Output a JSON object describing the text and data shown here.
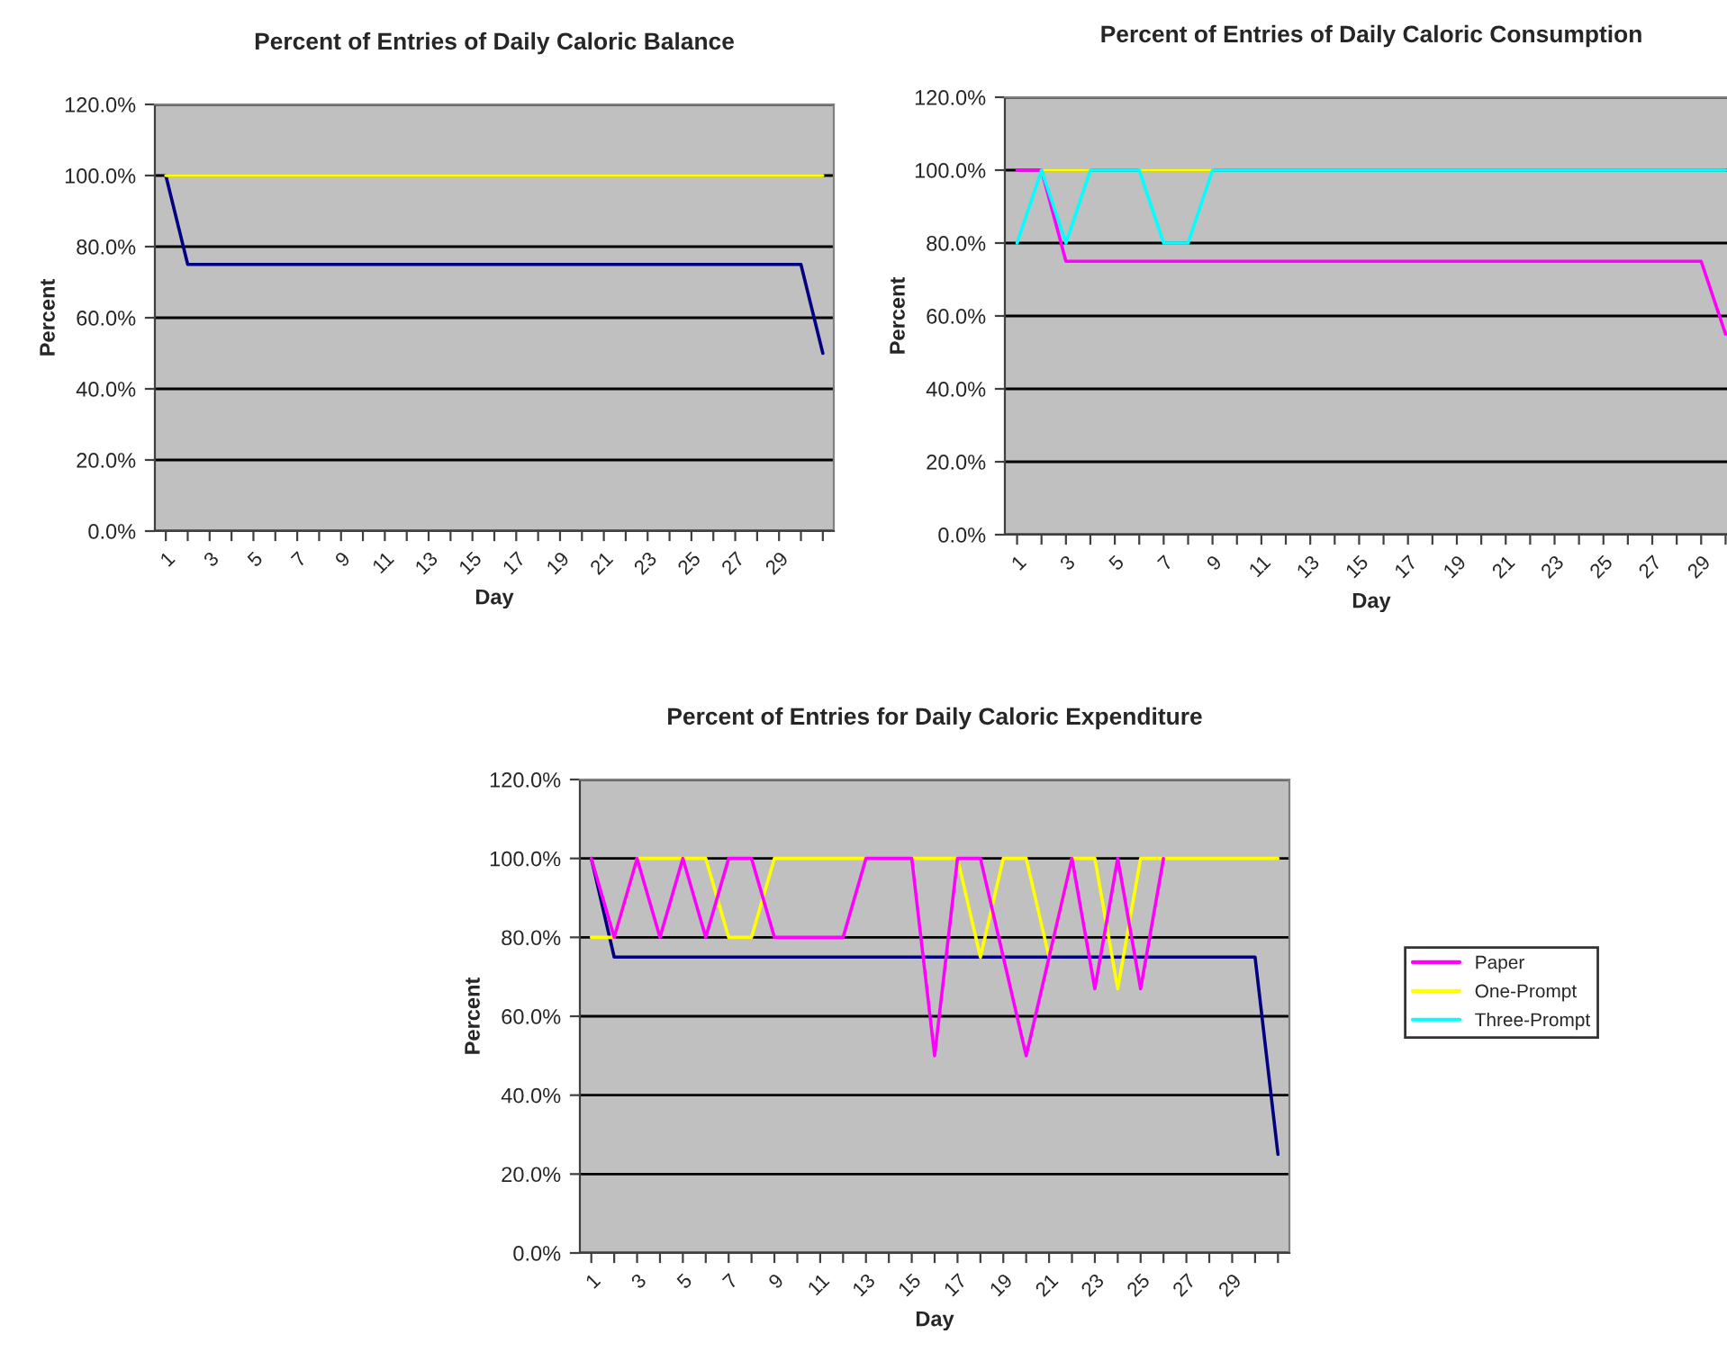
{
  "chart_data": [
    {
      "type": "line",
      "title": "Percent of Entries of Daily Caloric Balance",
      "xlabel": "Day",
      "ylabel": "Percent",
      "categories": [
        "1",
        null,
        "3",
        null,
        "5",
        null,
        "7",
        null,
        "9",
        null,
        "11",
        null,
        "13",
        null,
        "15",
        null,
        "17",
        null,
        "19",
        null,
        "21",
        null,
        "23",
        null,
        "25",
        null,
        "27",
        null,
        "29",
        null,
        null
      ],
      "series": [
        {
          "color": "#ffff00",
          "values": [
            100,
            100,
            100,
            100,
            100,
            100,
            100,
            100,
            100,
            100,
            100,
            100,
            100,
            100,
            100,
            100,
            100,
            100,
            100,
            100,
            100,
            100,
            100,
            100,
            100,
            100,
            100,
            100,
            100,
            100,
            100
          ]
        },
        {
          "color": "#000080",
          "values": [
            100,
            75,
            75,
            75,
            75,
            75,
            75,
            75,
            75,
            75,
            75,
            75,
            75,
            75,
            75,
            75,
            75,
            75,
            75,
            75,
            75,
            75,
            75,
            75,
            75,
            75,
            75,
            75,
            75,
            75,
            50
          ]
        }
      ],
      "ylim": [
        0,
        120
      ],
      "yticks": [
        {
          "value": 0,
          "label": "0.0%"
        },
        {
          "value": 20,
          "label": "20.0%"
        },
        {
          "value": 40,
          "label": "40.0%"
        },
        {
          "value": 60,
          "label": "60.0%"
        },
        {
          "value": 80,
          "label": "80.0%"
        },
        {
          "value": 100,
          "label": "100.0%"
        },
        {
          "value": 120,
          "label": "120.0%"
        }
      ],
      "grid": "y"
    },
    {
      "type": "line",
      "title": "Percent of Entries of Daily Caloric Consumption",
      "xlabel": "Day",
      "ylabel": "Percent",
      "categories": [
        "1",
        null,
        "3",
        null,
        "5",
        null,
        "7",
        null,
        "9",
        null,
        "11",
        null,
        "13",
        null,
        "15",
        null,
        "17",
        null,
        "19",
        null,
        "21",
        null,
        "23",
        null,
        "25",
        null,
        "27",
        null,
        "29",
        null
      ],
      "series": [
        {
          "color": "#00ffff",
          "values": [
            80,
            100,
            80,
            100,
            100,
            100,
            80,
            80,
            100,
            100,
            100,
            100,
            100,
            100,
            100,
            100,
            100,
            100,
            100,
            100,
            100,
            100,
            100,
            100,
            100,
            100,
            100,
            100,
            100,
            100
          ]
        },
        {
          "color": "#ff00ff",
          "values": [
            100,
            100,
            75,
            75,
            75,
            75,
            75,
            75,
            75,
            75,
            75,
            75,
            75,
            75,
            75,
            75,
            75,
            75,
            75,
            75,
            75,
            75,
            75,
            75,
            75,
            75,
            75,
            75,
            75,
            55
          ]
        },
        {
          "color": "#ffff00",
          "values": [
            null,
            100,
            100,
            100,
            null,
            100,
            100,
            100,
            100,
            null,
            null,
            null,
            null,
            null,
            null,
            null,
            null,
            null,
            null,
            null,
            null,
            null,
            null,
            null,
            null,
            null,
            null,
            null,
            null,
            null
          ]
        }
      ],
      "ylim": [
        0,
        120
      ],
      "yticks": [
        {
          "value": 0,
          "label": "0.0%"
        },
        {
          "value": 20,
          "label": "20.0%"
        },
        {
          "value": 40,
          "label": "40.0%"
        },
        {
          "value": 60,
          "label": "60.0%"
        },
        {
          "value": 80,
          "label": "80.0%"
        },
        {
          "value": 100,
          "label": "100.0%"
        },
        {
          "value": 120,
          "label": "120.0%"
        }
      ],
      "grid": "y"
    },
    {
      "type": "line",
      "title": "Percent of Entries for Daily Caloric Expenditure",
      "xlabel": "Day",
      "ylabel": "Percent",
      "legend": "right",
      "categories": [
        "1",
        null,
        "3",
        null,
        "5",
        null,
        "7",
        null,
        "9",
        null,
        "11",
        null,
        "13",
        null,
        "15",
        null,
        "17",
        null,
        "19",
        null,
        "21",
        null,
        "23",
        null,
        "25",
        null,
        "27",
        null,
        "29",
        null,
        null
      ],
      "series": [
        {
          "name": "Paper",
          "color": "#ff00ff",
          "values": [
            100,
            80,
            100,
            80,
            100,
            80,
            100,
            100,
            80,
            80,
            80,
            80,
            100,
            100,
            100,
            50,
            100,
            100,
            75,
            50,
            75,
            100,
            67,
            100,
            67,
            100,
            null,
            null,
            null,
            null,
            null
          ]
        },
        {
          "name": "One-Prompt",
          "color": "#ffff00",
          "values": [
            80,
            80,
            100,
            100,
            100,
            100,
            80,
            80,
            100,
            100,
            100,
            100,
            100,
            null,
            100,
            100,
            100,
            75,
            100,
            100,
            75,
            100,
            100,
            67,
            100,
            100,
            100,
            100,
            100,
            100,
            100
          ]
        },
        {
          "name": "Three-Prompt",
          "color": "#00ffff",
          "values": [
            null,
            null,
            null,
            null,
            null,
            null,
            null,
            null,
            null,
            null,
            null,
            null,
            null,
            null,
            null,
            null,
            null,
            null,
            null,
            null,
            null,
            null,
            null,
            null,
            null,
            null,
            null,
            null,
            null,
            null,
            null
          ]
        },
        {
          "color": "#000080",
          "values": [
            100,
            75,
            75,
            75,
            75,
            75,
            75,
            75,
            75,
            75,
            75,
            75,
            75,
            75,
            75,
            75,
            75,
            75,
            75,
            75,
            75,
            75,
            75,
            75,
            75,
            75,
            75,
            75,
            75,
            75,
            25
          ]
        }
      ],
      "ylim": [
        0,
        120
      ],
      "yticks": [
        {
          "value": 0,
          "label": "0.0%"
        },
        {
          "value": 20,
          "label": "20.0%"
        },
        {
          "value": 40,
          "label": "40.0%"
        },
        {
          "value": 60,
          "label": "60.0%"
        },
        {
          "value": 80,
          "label": "80.0%"
        },
        {
          "value": 100,
          "label": "100.0%"
        },
        {
          "value": 120,
          "label": "120.0%"
        }
      ],
      "grid": "y"
    }
  ]
}
